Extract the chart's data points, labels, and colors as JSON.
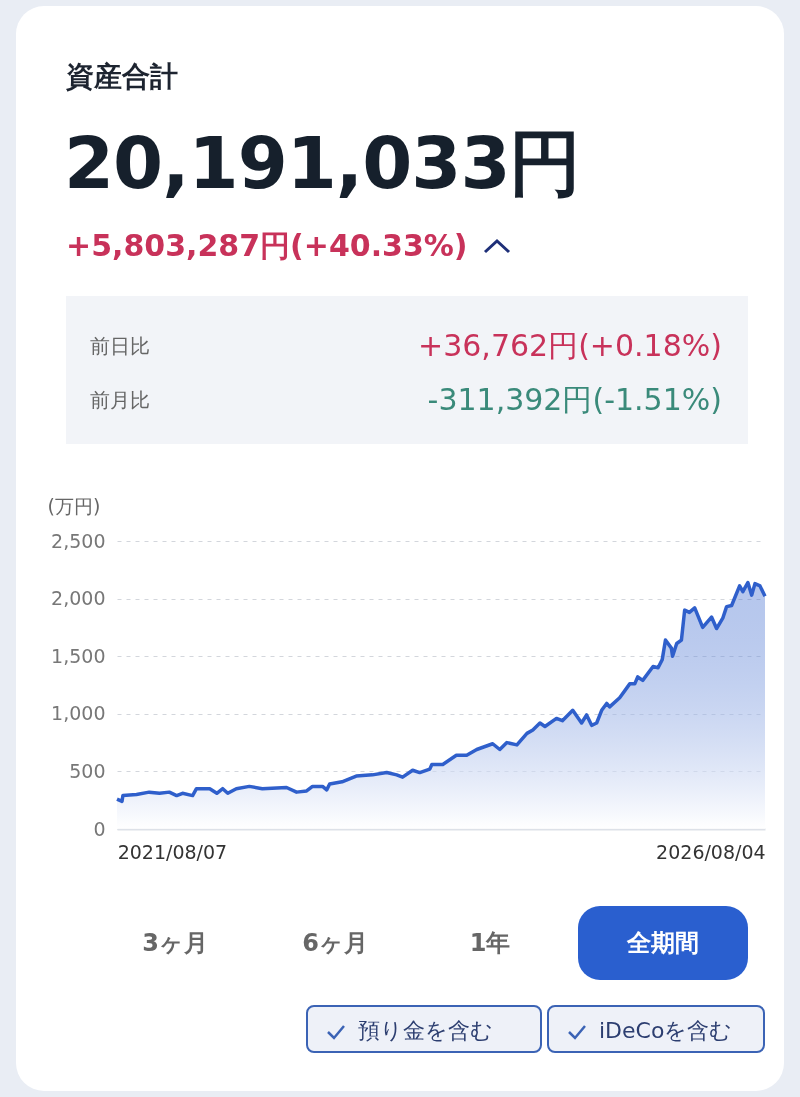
{
  "chart_data": {
    "type": "area",
    "title": "資産合計",
    "subtitle": "20,191,033円",
    "ylabel": "(万円)",
    "annotations": [
      "+5,803,287円(+40.33%)",
      "前日比",
      "+36,762円(+0.18%)",
      "前月比",
      "-311,392円(-1.51%)",
      "3ヶ月",
      "6ヶ月",
      "1年",
      "全期間",
      "預り金を含む",
      "iDeCoを含む"
    ],
    "x": [
      "2021-02-02",
      "2021-02-19",
      "2021-02-22",
      "2021-04-09",
      "2021-05-22",
      "2021-06-26",
      "2021-07-29",
      "2021-08-23",
      "2021-09-12",
      "2021-10-16",
      "2021-10-29",
      "2021-12-13",
      "2022-01-06",
      "2022-01-26",
      "2022-02-12",
      "2022-03-13",
      "2022-04-26",
      "2022-06-09",
      "2022-08-30",
      "2022-10-03",
      "2022-11-06",
      "2022-11-26",
      "2022-12-30",
      "2023-01-13",
      "2023-01-23",
      "2023-03-06",
      "2023-04-23",
      "2023-06-17",
      "2023-08-04",
      "2023-09-07",
      "2023-09-27",
      "2023-10-31",
      "2023-11-24",
      "2023-12-28",
      "2024-01-04",
      "2024-02-10",
      "2024-03-27",
      "2024-05-01",
      "2024-06-04",
      "2024-07-28",
      "2024-08-21",
      "2024-09-14",
      "2024-10-18",
      "2024-11-21",
      "2024-12-11",
      "2025-01-04",
      "2025-01-21",
      "2025-03-01",
      "2025-03-21",
      "2025-04-25",
      "2025-05-25",
      "2025-06-11",
      "2025-06-28",
      "2025-07-15",
      "2025-08-01",
      "2025-08-18",
      "2025-08-28",
      "2025-10-01",
      "2025-11-04",
      "2025-11-21",
      "2025-12-01",
      "2025-12-18",
      "2026-01-22",
      "2026-02-08",
      "2026-02-22",
      "2026-03-05",
      "2026-03-25",
      "2026-03-29",
      "2026-04-12",
      "2026-04-28",
      "2026-05-09",
      "2026-05-25",
      "2026-06-12",
      "2026-07-09",
      "2026-08-08",
      "2026-08-25",
      "2026-09-15",
      "2026-09-28",
      "2026-10-15",
      "2026-11-11",
      "2026-11-22",
      "2026-12-09",
      "2026-12-22",
      "2027-01-02",
      "2027-01-19",
      "2027-02-05"
    ],
    "series": [
      {
        "color": "#2f5fcb",
        "values": [
          260,
          240,
          290,
          300,
          320,
          310,
          320,
          290,
          310,
          290,
          350,
          350,
          310,
          350,
          310,
          350,
          370,
          350,
          360,
          320,
          330,
          370,
          370,
          340,
          390,
          410,
          460,
          470,
          490,
          470,
          450,
          510,
          490,
          520,
          560,
          560,
          640,
          640,
          690,
          740,
          690,
          750,
          730,
          830,
          860,
          920,
          890,
          960,
          940,
          1030,
          920,
          990,
          900,
          920,
          1030,
          1090,
          1060,
          1140,
          1260,
          1260,
          1320,
          1290,
          1410,
          1400,
          1470,
          1640,
          1570,
          1500,
          1610,
          1640,
          1900,
          1880,
          1920,
          1750,
          1840,
          1740,
          1830,
          1930,
          1940,
          2110,
          2060,
          2140,
          2030,
          2130,
          2110,
          2020
        ]
      }
    ],
    "xlim": [
      "2021-02-02",
      "2027-02-05"
    ],
    "xticks": [
      {
        "value": "2021-08-07",
        "label": "2021/08/07"
      },
      {
        "value": "2026-08-04",
        "label": "2026/08/04"
      }
    ],
    "ylim": [
      0,
      2500
    ],
    "yticks": [
      0,
      500,
      {
        "value": 1000,
        "label": "1,000"
      },
      {
        "value": 1500,
        "label": "1,500"
      },
      {
        "value": 2000,
        "label": "2,000"
      },
      {
        "value": 2500,
        "label": "2,500"
      }
    ],
    "grid": "y"
  }
}
